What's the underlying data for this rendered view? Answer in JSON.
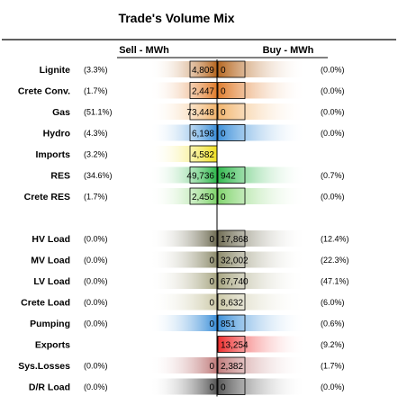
{
  "chart_data": {
    "type": "bar",
    "title": "Trade's Volume Mix",
    "sell_header": "Sell - MWh",
    "buy_header": "Buy - MWh",
    "groups": [
      {
        "name": "sell_side",
        "rows": [
          {
            "label": "Lignite",
            "sell": 4809,
            "sell_text": "4,809",
            "sell_pct": "(3.3%)",
            "buy": 0,
            "buy_text": "0",
            "buy_pct": "(0.0%)",
            "color": "#b5651d"
          },
          {
            "label": "Crete Conv.",
            "sell": 2447,
            "sell_text": "2,447",
            "sell_pct": "(1.7%)",
            "buy": 0,
            "buy_text": "0",
            "buy_pct": "(0.0%)",
            "color": "#e07b2a"
          },
          {
            "label": "Gas",
            "sell": 73448,
            "sell_text": "73,448",
            "sell_pct": "(51.1%)",
            "buy": 0,
            "buy_text": "0",
            "buy_pct": "(0.0%)",
            "color": "#f2b36a"
          },
          {
            "label": "Hydro",
            "sell": 6198,
            "sell_text": "6,198",
            "sell_pct": "(4.3%)",
            "buy": 0,
            "buy_text": "0",
            "buy_pct": "(0.0%)",
            "color": "#3b8fd9"
          },
          {
            "label": "Imports",
            "sell": 4582,
            "sell_text": "4,582",
            "sell_pct": "(3.2%)",
            "buy": null,
            "buy_text": "",
            "buy_pct": "",
            "color": "#f0e020"
          },
          {
            "label": "RES",
            "sell": 49736,
            "sell_text": "49,736",
            "sell_pct": "(34.6%)",
            "buy": 942,
            "buy_text": "942",
            "buy_pct": "(0.7%)",
            "color": "#2db84a"
          },
          {
            "label": "Crete RES",
            "sell": 2450,
            "sell_text": "2,450",
            "sell_pct": "(1.7%)",
            "buy": 0,
            "buy_text": "0",
            "buy_pct": "(0.0%)",
            "color": "#7ed36a"
          }
        ]
      },
      {
        "name": "buy_side",
        "rows": [
          {
            "label": "HV Load",
            "sell": 0,
            "sell_text": "0",
            "sell_pct": "(0.0%)",
            "buy": 17868,
            "buy_text": "17,868",
            "buy_pct": "(12.4%)",
            "color": "#6e6b52"
          },
          {
            "label": "MV Load",
            "sell": 0,
            "sell_text": "0",
            "sell_pct": "(0.0%)",
            "buy": 32002,
            "buy_text": "32,002",
            "buy_pct": "(22.3%)",
            "color": "#8c8a6a"
          },
          {
            "label": "LV Load",
            "sell": 0,
            "sell_text": "0",
            "sell_pct": "(0.0%)",
            "buy": 67740,
            "buy_text": "67,740",
            "buy_pct": "(47.1%)",
            "color": "#a8a682"
          },
          {
            "label": "Crete Load",
            "sell": 0,
            "sell_text": "0",
            "sell_pct": "(0.0%)",
            "buy": 8632,
            "buy_text": "8,632",
            "buy_pct": "(6.0%)",
            "color": "#cdcaa9"
          },
          {
            "label": "Pumping",
            "sell": 0,
            "sell_text": "0",
            "sell_pct": "(0.0%)",
            "buy": 851,
            "buy_text": "851",
            "buy_pct": "(0.6%)",
            "color": "#3b8fd9"
          },
          {
            "label": "Exports",
            "sell": null,
            "sell_text": "",
            "sell_pct": "",
            "buy": 13254,
            "buy_text": "13,254",
            "buy_pct": "(9.2%)",
            "color": "#ee2a2a"
          },
          {
            "label": "Sys.Losses",
            "sell": 0,
            "sell_text": "0",
            "sell_pct": "(0.0%)",
            "buy": 2382,
            "buy_text": "2,382",
            "buy_pct": "(1.7%)",
            "color": "#c07a7a"
          },
          {
            "label": "D/R Load",
            "sell": 0,
            "sell_text": "0",
            "sell_pct": "(0.0%)",
            "buy": 0,
            "buy_text": "0",
            "buy_pct": "(0.0%)",
            "color": "#555555"
          }
        ]
      }
    ]
  }
}
